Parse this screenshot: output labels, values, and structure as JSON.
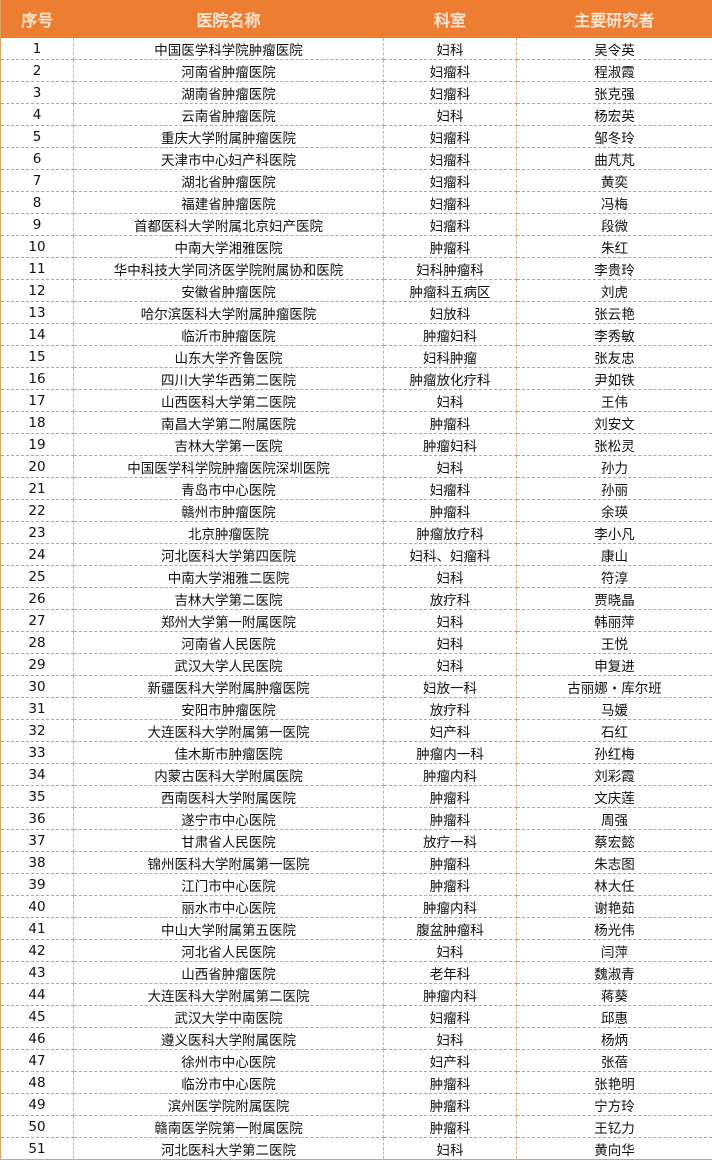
{
  "table": {
    "headers": [
      "序号",
      "医院名称",
      "科室",
      "主要研究者"
    ],
    "header_color": "#ED7D31",
    "rows": [
      [
        "1",
        "中国医学科学院肿瘤医院",
        "妇科",
        "吴令英"
      ],
      [
        "2",
        "河南省肿瘤医院",
        "妇瘤科",
        "程淑霞"
      ],
      [
        "3",
        "湖南省肿瘤医院",
        "妇瘤科",
        "张克强"
      ],
      [
        "4",
        "云南省肿瘤医院",
        "妇科",
        "杨宏英"
      ],
      [
        "5",
        "重庆大学附属肿瘤医院",
        "妇瘤科",
        "邹冬玲"
      ],
      [
        "6",
        "天津市中心妇产科医院",
        "妇瘤科",
        "曲芃芃"
      ],
      [
        "7",
        "湖北省肿瘤医院",
        "妇瘤科",
        "黄奕"
      ],
      [
        "8",
        "福建省肿瘤医院",
        "妇瘤科",
        "冯梅"
      ],
      [
        "9",
        "首都医科大学附属北京妇产医院",
        "妇瘤科",
        "段微"
      ],
      [
        "10",
        "中南大学湘雅医院",
        "肿瘤科",
        "朱红"
      ],
      [
        "11",
        "华中科技大学同济医学院附属协和医院",
        "妇科肿瘤科",
        "李贵玲"
      ],
      [
        "12",
        "安徽省肿瘤医院",
        "肿瘤科五病区",
        "刘虎"
      ],
      [
        "13",
        "哈尔滨医科大学附属肿瘤医院",
        "妇放科",
        "张云艳"
      ],
      [
        "14",
        "临沂市肿瘤医院",
        "肿瘤妇科",
        "李秀敏"
      ],
      [
        "15",
        "山东大学齐鲁医院",
        "妇科肿瘤",
        "张友忠"
      ],
      [
        "16",
        "四川大学华西第二医院",
        "肿瘤放化疗科",
        "尹如铁"
      ],
      [
        "17",
        "山西医科大学第二医院",
        "妇科",
        "王伟"
      ],
      [
        "18",
        "南昌大学第二附属医院",
        "肿瘤科",
        "刘安文"
      ],
      [
        "19",
        "吉林大学第一医院",
        "肿瘤妇科",
        "张松灵"
      ],
      [
        "20",
        "中国医学科学院肿瘤医院深圳医院",
        "妇科",
        "孙力"
      ],
      [
        "21",
        "青岛市中心医院",
        "妇瘤科",
        "孙丽"
      ],
      [
        "22",
        "赣州市肿瘤医院",
        "肿瘤科",
        "余瑛"
      ],
      [
        "23",
        "北京肿瘤医院",
        "肿瘤放疗科",
        "李小凡"
      ],
      [
        "24",
        "河北医科大学第四医院",
        "妇科、妇瘤科",
        "康山"
      ],
      [
        "25",
        "中南大学湘雅二医院",
        "妇科",
        "符淳"
      ],
      [
        "26",
        "吉林大学第二医院",
        "放疗科",
        "贾晓晶"
      ],
      [
        "27",
        "郑州大学第一附属医院",
        "妇科",
        "韩丽萍"
      ],
      [
        "28",
        "河南省人民医院",
        "妇科",
        "王悦"
      ],
      [
        "29",
        "武汉大学人民医院",
        "妇科",
        "申复进"
      ],
      [
        "30",
        "新疆医科大学附属肿瘤医院",
        "妇放一科",
        "古丽娜・库尔班"
      ],
      [
        "31",
        "安阳市肿瘤医院",
        "放疗科",
        "马媛"
      ],
      [
        "32",
        "大连医科大学附属第一医院",
        "妇产科",
        "石红"
      ],
      [
        "33",
        "佳木斯市肿瘤医院",
        "肿瘤内一科",
        "孙红梅"
      ],
      [
        "34",
        "内蒙古医科大学附属医院",
        "肿瘤内科",
        "刘彩霞"
      ],
      [
        "35",
        "西南医科大学附属医院",
        "肿瘤科",
        "文庆莲"
      ],
      [
        "36",
        "遂宁市中心医院",
        "肿瘤科",
        "周强"
      ],
      [
        "37",
        "甘肃省人民医院",
        "放疗一科",
        "蔡宏懿"
      ],
      [
        "38",
        "锦州医科大学附属第一医院",
        "肿瘤科",
        "朱志图"
      ],
      [
        "39",
        "江门市中心医院",
        "肿瘤科",
        "林大任"
      ],
      [
        "40",
        "丽水市中心医院",
        "肿瘤内科",
        "谢艳茹"
      ],
      [
        "41",
        "中山大学附属第五医院",
        "腹盆肿瘤科",
        "杨光伟"
      ],
      [
        "42",
        "河北省人民医院",
        "妇科",
        "闫萍"
      ],
      [
        "43",
        "山西省肿瘤医院",
        "老年科",
        "魏淑青"
      ],
      [
        "44",
        "大连医科大学附属第二医院",
        "肿瘤内科",
        "蒋葵"
      ],
      [
        "45",
        "武汉大学中南医院",
        "妇瘤科",
        "邱惠"
      ],
      [
        "46",
        "遵义医科大学附属医院",
        "妇科",
        "杨炳"
      ],
      [
        "47",
        "徐州市中心医院",
        "妇产科",
        "张蓓"
      ],
      [
        "48",
        "临汾市中心医院",
        "肿瘤科",
        "张艳明"
      ],
      [
        "49",
        "滨州医学院附属医院",
        "肿瘤科",
        "宁方玲"
      ],
      [
        "50",
        "赣南医学院第一附属医院",
        "肿瘤科",
        "王钇力"
      ],
      [
        "51",
        "河北医科大学第二医院",
        "妇科",
        "黄向华"
      ]
    ]
  }
}
